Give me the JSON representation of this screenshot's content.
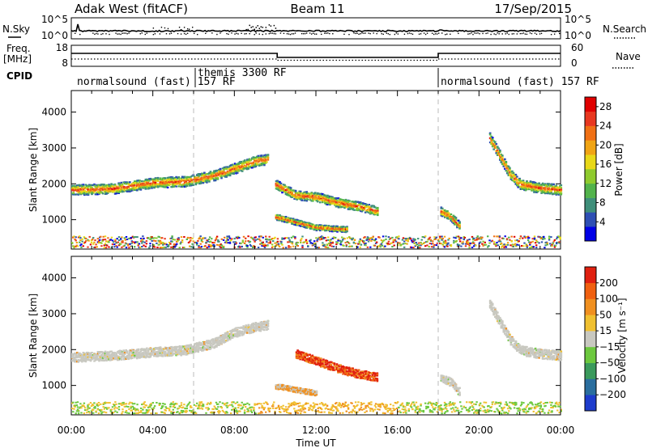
{
  "header": {
    "station": "Adak West (fitACF)",
    "beam": "Beam 11",
    "date": "17/Sep/2015"
  },
  "noise_panel": {
    "left_label": "N.Sky",
    "left_ticks": [
      "10^5",
      "10^0"
    ],
    "right_label": "N.Search",
    "right_ticks": [
      "10^5",
      "10^0"
    ]
  },
  "freq_panel": {
    "left_label_top": "Freq.",
    "left_label_unit": "[MHz]",
    "left_ticks": [
      "18",
      "8"
    ],
    "right_label": "Nave",
    "right_ticks": [
      "60",
      "0"
    ]
  },
  "cpid": {
    "label": "CPID",
    "segments": [
      {
        "name": "normalsound (fast) 157 RF",
        "start_hr": 0
      },
      {
        "name": "themis 3300 RF",
        "start_hr": 6
      },
      {
        "name": "normalsound (fast) 157 RF",
        "start_hr": 18
      }
    ]
  },
  "chart_data": [
    {
      "type": "heatmap",
      "name": "power",
      "ylabel": "Slant Range [km]",
      "ylim": [
        180,
        4600
      ],
      "yticks": [
        1000,
        2000,
        3000,
        4000
      ],
      "xlim_hr": [
        0,
        24
      ],
      "colorbar": {
        "label": "Power [dB]",
        "ticks": [
          "4",
          "8",
          "12",
          "16",
          "20",
          "24",
          "28"
        ],
        "range": [
          0,
          30
        ],
        "colors": [
          "#0000e6",
          "#2e4fb4",
          "#3f8f7a",
          "#52b34c",
          "#8fcb2e",
          "#e8d818",
          "#f0a414",
          "#f07014",
          "#e83820",
          "#e00000"
        ]
      },
      "echo_tracks": [
        {
          "t": [
            0.0,
            2.0,
            4.0,
            5.5,
            7.0,
            8.0,
            9.0,
            9.6
          ],
          "r": [
            1850,
            1880,
            2050,
            2080,
            2250,
            2450,
            2650,
            2700
          ],
          "w": 220
        },
        {
          "t": [
            10.0,
            11.0,
            12.0,
            13.0,
            14.0,
            15.0
          ],
          "r": [
            2000,
            1700,
            1650,
            1500,
            1400,
            1250
          ],
          "w": 200
        },
        {
          "t": [
            10.0,
            11.0,
            12.0,
            13.5
          ],
          "r": [
            1100,
            950,
            800,
            750
          ],
          "w": 120
        },
        {
          "t": [
            18.1,
            18.6,
            19.0
          ],
          "r": [
            1250,
            1100,
            850
          ],
          "w": 180
        },
        {
          "t": [
            20.5,
            21.0,
            21.5,
            22.0,
            23.0,
            24.0
          ],
          "r": [
            3300,
            2800,
            2300,
            2000,
            1900,
            1850
          ],
          "w": 220
        }
      ]
    },
    {
      "type": "heatmap",
      "name": "velocity",
      "ylabel": "Slant Range [km]",
      "xlabel": "Time UT",
      "ylim": [
        180,
        4600
      ],
      "yticks": [
        1000,
        2000,
        3000,
        4000
      ],
      "xlim_hr": [
        0,
        24
      ],
      "xticks": [
        "00:00",
        "04:00",
        "08:00",
        "12:00",
        "16:00",
        "20:00",
        "00:00"
      ],
      "colorbar": {
        "label": "Velocity [m s⁻¹]",
        "ticks": [
          "200",
          "100",
          "50",
          "15",
          "−15",
          "−50",
          "−100",
          "−200"
        ],
        "colors": [
          "#1e3ccc",
          "#2a6e9e",
          "#3a9a5c",
          "#6cc83e",
          "#c8c8c0",
          "#f0c030",
          "#f09020",
          "#f06010",
          "#e02010"
        ]
      },
      "echo_tracks": [
        {
          "t": [
            0.0,
            2.0,
            4.0,
            5.5,
            7.0,
            8.0,
            9.0,
            9.6
          ],
          "r": [
            1800,
            1850,
            1950,
            2000,
            2200,
            2500,
            2650,
            2700
          ],
          "w": 200
        },
        {
          "t": [
            11.0,
            12.0,
            13.0,
            14.0,
            15.0
          ],
          "r": [
            1900,
            1700,
            1500,
            1350,
            1250
          ],
          "w": 180
        },
        {
          "t": [
            10.0,
            11.0,
            12.0
          ],
          "r": [
            1000,
            900,
            800
          ],
          "w": 110
        },
        {
          "t": [
            18.1,
            18.6,
            19.0
          ],
          "r": [
            1250,
            1100,
            850
          ],
          "w": 170
        },
        {
          "t": [
            20.5,
            21.0,
            21.5,
            22.0,
            23.0,
            24.0
          ],
          "r": [
            3300,
            2800,
            2300,
            2000,
            1900,
            1850
          ],
          "w": 200
        }
      ]
    }
  ]
}
